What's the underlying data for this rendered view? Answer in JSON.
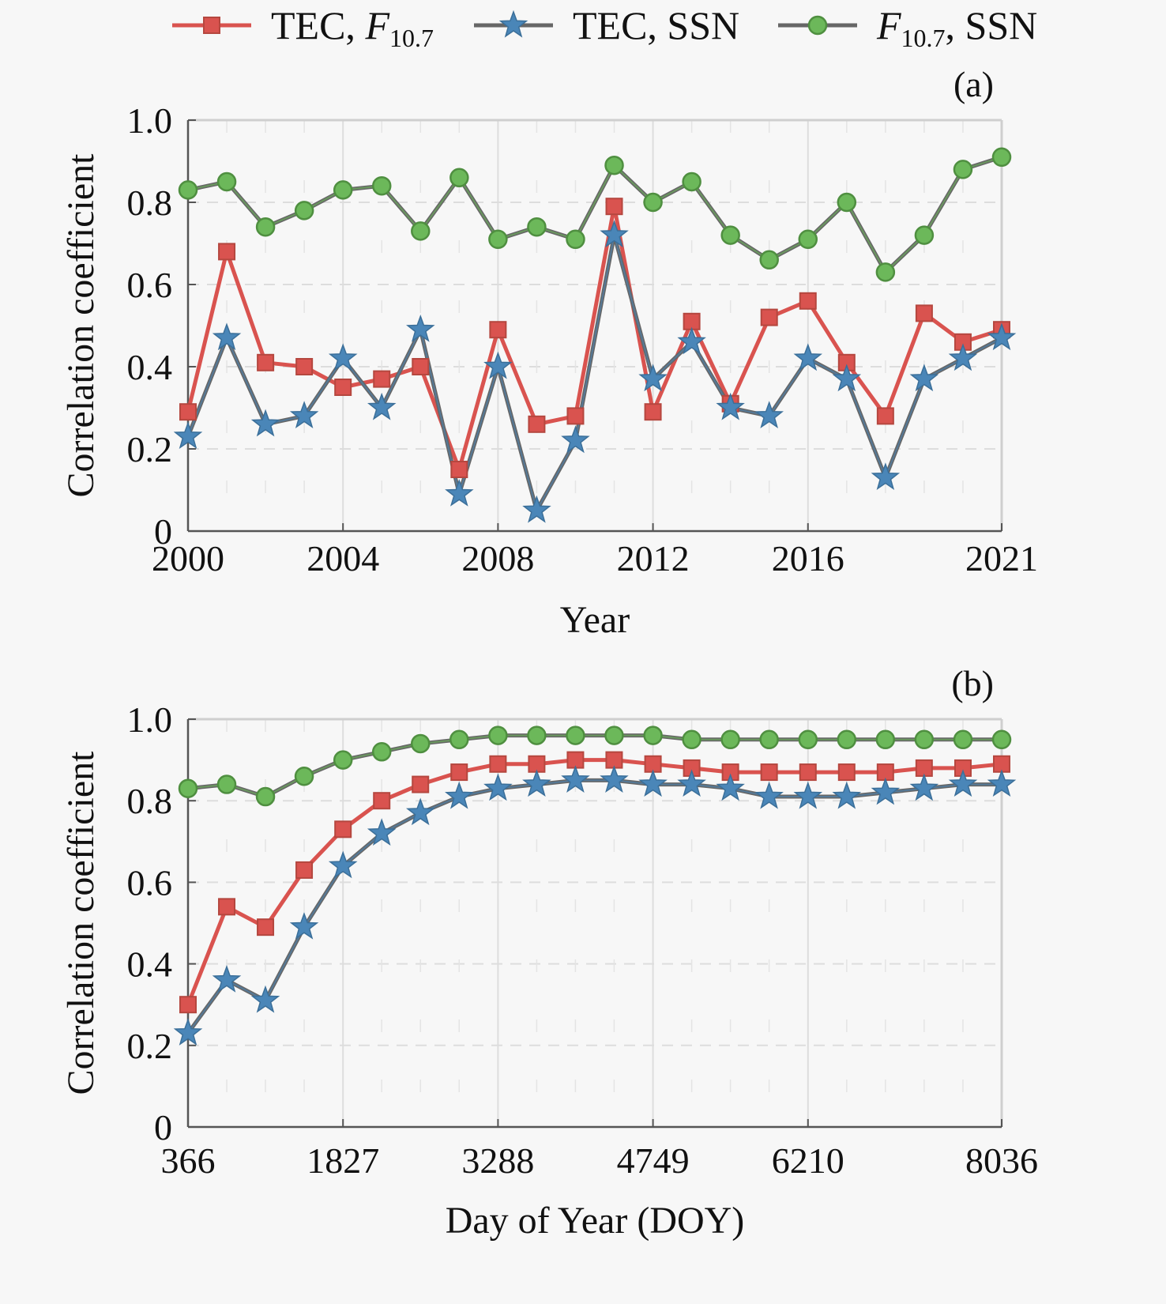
{
  "legend": {
    "position": "top-center",
    "entries": [
      {
        "label_main": "TEC, ",
        "label_italic": "F",
        "label_sub": "10.7",
        "label_tail": "",
        "marker": "square",
        "color": "#d9534f",
        "line_color": "#d9534f"
      },
      {
        "label_main": "TEC, SSN",
        "label_italic": "",
        "label_sub": "",
        "label_tail": "",
        "marker": "star",
        "color": "#4a86b8",
        "line_color": "#666666"
      },
      {
        "label_main": "",
        "label_italic": "F",
        "label_sub": "10.7",
        "label_tail": ", SSN",
        "marker": "circle",
        "color": "#6cb85a",
        "line_color": "#666666"
      }
    ]
  },
  "chart_data": [
    {
      "type": "line",
      "panel_label": "(a)",
      "title": "",
      "xlabel": "Year",
      "ylabel": "Correlation coefficient",
      "x": [
        2000,
        2001,
        2002,
        2003,
        2004,
        2005,
        2006,
        2007,
        2008,
        2009,
        2010,
        2011,
        2012,
        2013,
        2014,
        2015,
        2016,
        2017,
        2018,
        2019,
        2020,
        2021
      ],
      "xlim": [
        2000,
        2021
      ],
      "xticks": [
        2000,
        2004,
        2008,
        2012,
        2016,
        2021
      ],
      "xtick_labels": [
        "2000",
        "2004",
        "2008",
        "2012",
        "2016",
        "2021"
      ],
      "ylim": [
        0,
        1.0
      ],
      "yticks": [
        0,
        0.2,
        0.4,
        0.6,
        0.8,
        1.0
      ],
      "ytick_labels": [
        "0",
        "0.2",
        "0.4",
        "0.6",
        "0.8",
        "1.0"
      ],
      "grid": true,
      "series": [
        {
          "name": "TEC, F10.7",
          "marker": "square",
          "color": "#d9534f",
          "values": [
            0.29,
            0.68,
            0.41,
            0.4,
            0.35,
            0.37,
            0.4,
            0.15,
            0.49,
            0.26,
            0.28,
            0.79,
            0.29,
            0.51,
            0.31,
            0.52,
            0.56,
            0.41,
            0.28,
            0.53,
            0.46,
            0.49
          ]
        },
        {
          "name": "TEC, SSN",
          "marker": "star",
          "color": "#4a86b8",
          "values": [
            0.23,
            0.47,
            0.26,
            0.28,
            0.42,
            0.3,
            0.49,
            0.09,
            0.4,
            0.05,
            0.22,
            0.72,
            0.37,
            0.46,
            0.3,
            0.28,
            0.42,
            0.37,
            0.13,
            0.37,
            0.42,
            0.47
          ]
        },
        {
          "name": "F10.7, SSN",
          "marker": "circle",
          "color": "#6cb85a",
          "values": [
            0.83,
            0.85,
            0.74,
            0.78,
            0.83,
            0.84,
            0.73,
            0.86,
            0.71,
            0.74,
            0.71,
            0.89,
            0.8,
            0.85,
            0.72,
            0.66,
            0.71,
            0.8,
            0.63,
            0.72,
            0.88,
            0.91
          ]
        }
      ]
    },
    {
      "type": "line",
      "panel_label": "(b)",
      "title": "",
      "xlabel": "Day of Year (DOY)",
      "ylabel": "Correlation coefficient",
      "x": [
        366,
        731,
        1096,
        1461,
        1827,
        2192,
        2557,
        2922,
        3288,
        3653,
        4018,
        4383,
        4749,
        5114,
        5479,
        5844,
        6210,
        6575,
        6940,
        7305,
        7671,
        8036
      ],
      "xlim": [
        366,
        8036
      ],
      "xticks": [
        366,
        1827,
        3288,
        4749,
        6210,
        8036
      ],
      "xtick_labels": [
        "366",
        "1827",
        "3288",
        "4749",
        "6210",
        "8036"
      ],
      "ylim": [
        0,
        1.0
      ],
      "yticks": [
        0,
        0.2,
        0.4,
        0.6,
        0.8,
        1.0
      ],
      "ytick_labels": [
        "0",
        "0.2",
        "0.4",
        "0.6",
        "0.8",
        "1.0"
      ],
      "grid": true,
      "series": [
        {
          "name": "TEC, F10.7",
          "marker": "square",
          "color": "#d9534f",
          "values": [
            0.3,
            0.54,
            0.49,
            0.63,
            0.73,
            0.8,
            0.84,
            0.87,
            0.89,
            0.89,
            0.9,
            0.9,
            0.89,
            0.88,
            0.87,
            0.87,
            0.87,
            0.87,
            0.87,
            0.88,
            0.88,
            0.89
          ]
        },
        {
          "name": "TEC, SSN",
          "marker": "star",
          "color": "#4a86b8",
          "values": [
            0.23,
            0.36,
            0.31,
            0.49,
            0.64,
            0.72,
            0.77,
            0.81,
            0.83,
            0.84,
            0.85,
            0.85,
            0.84,
            0.84,
            0.83,
            0.81,
            0.81,
            0.81,
            0.82,
            0.83,
            0.84,
            0.84
          ]
        },
        {
          "name": "F10.7, SSN",
          "marker": "circle",
          "color": "#6cb85a",
          "values": [
            0.83,
            0.84,
            0.81,
            0.86,
            0.9,
            0.92,
            0.94,
            0.95,
            0.96,
            0.96,
            0.96,
            0.96,
            0.96,
            0.95,
            0.95,
            0.95,
            0.95,
            0.95,
            0.95,
            0.95,
            0.95,
            0.95
          ]
        }
      ]
    }
  ]
}
